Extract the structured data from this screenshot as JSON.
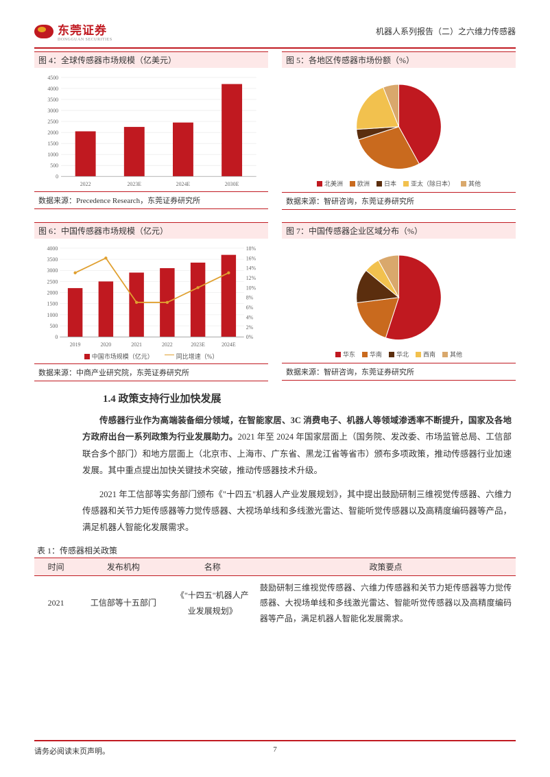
{
  "header": {
    "logo_cn": "东莞证券",
    "logo_en": "DONGGUAN SECURITIES",
    "doc_title": "机器人系列报告（二）之六维力传感器"
  },
  "fig4": {
    "title": "图 4：全球传感器市场规模（亿美元）",
    "type": "bar",
    "categories": [
      "2022",
      "2023E",
      "2024E",
      "2030E"
    ],
    "values": [
      2050,
      2250,
      2450,
      4200
    ],
    "ylim": [
      0,
      4500
    ],
    "yticks": [
      0,
      500,
      1000,
      1500,
      2000,
      2500,
      3000,
      3500,
      4000,
      4500
    ],
    "bar_color": "#c01920",
    "grid_color": "#e5e5e5",
    "source": "数据来源：Precedence Research，东莞证券研究所"
  },
  "fig5": {
    "title": "图 5：各地区传感器市场份额（%）",
    "type": "pie",
    "slices": [
      {
        "label": "北美洲",
        "value": 42,
        "color": "#c01920"
      },
      {
        "label": "欧洲",
        "value": 28,
        "color": "#c96a1e"
      },
      {
        "label": "日本",
        "value": 4,
        "color": "#5b2e0e"
      },
      {
        "label": "亚太（除日本）",
        "value": 20,
        "color": "#f2c14e"
      },
      {
        "label": "其他",
        "value": 6,
        "color": "#d9a86c"
      }
    ],
    "source": "数据来源：智研咨询，东莞证券研究所"
  },
  "fig6": {
    "title": "图 6：中国传感器市场规模（亿元）",
    "type": "bar+line",
    "categories": [
      "2019",
      "2020",
      "2021",
      "2022",
      "2023E",
      "2024E"
    ],
    "bar_values": [
      2200,
      2500,
      2900,
      3100,
      3350,
      3700
    ],
    "line_values": [
      13,
      16,
      7,
      7,
      10,
      13
    ],
    "ylim_left": [
      0,
      4000
    ],
    "yticks_left": [
      0,
      500,
      1000,
      1500,
      2000,
      2500,
      3000,
      3500,
      4000
    ],
    "ylim_right": [
      0,
      18
    ],
    "yticks_right": [
      0,
      2,
      4,
      6,
      8,
      10,
      12,
      14,
      16,
      18
    ],
    "bar_color": "#c01920",
    "line_color": "#e0a030",
    "legend_bar": "中国市场规模（亿元）",
    "legend_line": "同比增速（%）",
    "source": "数据来源：中商产业研究院，东莞证券研究所"
  },
  "fig7": {
    "title": "图 7：中国传感器企业区域分布（%）",
    "type": "pie",
    "slices": [
      {
        "label": "华东",
        "value": 55,
        "color": "#c01920"
      },
      {
        "label": "华南",
        "value": 18,
        "color": "#c96a1e"
      },
      {
        "label": "华北",
        "value": 13,
        "color": "#5b2e0e"
      },
      {
        "label": "西南",
        "value": 6,
        "color": "#f2c14e"
      },
      {
        "label": "其他",
        "value": 8,
        "color": "#d9a86c"
      }
    ],
    "source": "数据来源：智研咨询，东莞证券研究所"
  },
  "section": {
    "heading": "1.4 政策支持行业加快发展",
    "para1_bold": "传感器行业作为高端装备细分领域，在智能家居、3C 消费电子、机器人等领域渗透率不断提升，国家及各地方政府出台一系列政策为行业发展助力。",
    "para1_rest": "2021 年至 2024 年国家层面上（国务院、发改委、市场监管总局、工信部联合多个部门）和地方层面上（北京市、上海市、广东省、黑龙江省等省市）颁布多项政策，推动传感器行业加速发展。其中重点提出加快关键技术突破，推动传感器技术升级。",
    "para2": "2021 年工信部等实务部门颁布《\"十四五\"机器人产业发展规划》，其中提出鼓励研制三维视觉传感器、六维力传感器和关节力矩传感器等力觉传感器、大视场单线和多线激光雷达、智能听觉传感器以及高精度编码器等产品，满足机器人智能化发展需求。"
  },
  "table1": {
    "title": "表 1：传感器相关政策",
    "columns": [
      "时间",
      "发布机构",
      "名称",
      "政策要点"
    ],
    "rows": [
      {
        "time": "2021",
        "agency": "工信部等十五部门",
        "name": "《\"十四五\"机器人产业发展规划》",
        "point": "鼓励研制三维视觉传感器、六维力传感器和关节力矩传感器等力觉传感器、大视场单线和多线激光雷达、智能听觉传感器以及高精度编码器等产品，满足机器人智能化发展需求。"
      }
    ]
  },
  "footer": {
    "disclaimer": "请务必阅读末页声明。",
    "page": "7"
  }
}
